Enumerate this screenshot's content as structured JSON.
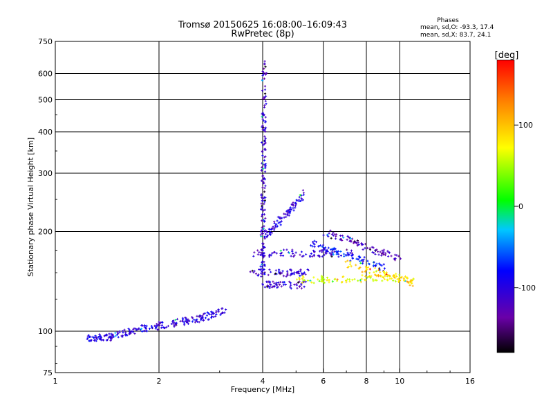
{
  "header": {
    "title_line1": "Tromsø 20150625 16:08:00–16:09:43",
    "title_line2": "RwPretec (8p)"
  },
  "phases_box": {
    "heading": "Phases",
    "line_o": "mean, sd,O: -93.3, 17.4",
    "line_x": "mean, sd,X: 83.7, 24.1"
  },
  "chart_data": {
    "type": "scatter",
    "xlabel": "Frequency [MHz]",
    "ylabel": "Stationary phase Virtual Height [km]",
    "x_scale": "log",
    "y_scale": "log",
    "xlim": [
      1,
      16
    ],
    "ylim": [
      75,
      750
    ],
    "x_ticks": [
      1,
      2,
      4,
      6,
      8,
      10,
      16
    ],
    "x_tick_labels": [
      "1",
      "2",
      "4",
      "6",
      "8",
      "10",
      "16"
    ],
    "x_grid_lines": [
      2,
      4,
      6,
      8,
      10
    ],
    "y_ticks": [
      75,
      100,
      200,
      300,
      400,
      500,
      600,
      750
    ],
    "y_tick_labels": [
      "75",
      "100",
      "200",
      "300",
      "400",
      "500",
      "600",
      "750"
    ],
    "y_grid_lines": [
      100,
      200,
      300,
      400,
      500,
      600
    ],
    "grid": true,
    "colorbar": {
      "label": "[deg]",
      "range": [
        -180,
        180
      ],
      "ticks": [
        100,
        0,
        -100
      ],
      "tick_labels": [
        "100",
        "0",
        "-100"
      ],
      "colors": [
        "#000000",
        "#6a00a8",
        "#0000ff",
        "#00c8ff",
        "#00ff00",
        "#ffff00",
        "#ff8000",
        "#ff0000"
      ]
    },
    "series": [
      {
        "traces": [
          {
            "f": [
              1.25,
              1.45
            ],
            "h": [
              95,
              96
            ],
            "phase": -100
          },
          {
            "f": [
              1.45,
              1.9
            ],
            "h": [
              97,
              103
            ],
            "phase": -100
          },
          {
            "f": [
              1.9,
              2.5
            ],
            "h": [
              103,
              108
            ],
            "phase": -105
          },
          {
            "f": [
              2.5,
              3.1
            ],
            "h": [
              108,
              115
            ],
            "phase": -100
          },
          {
            "f": [
              4.0,
              4.05
            ],
            "h": [
              150,
              650
            ],
            "phase": -110
          },
          {
            "f": [
              4.1,
              5.3
            ],
            "h": [
              195,
              260
            ],
            "phase": -105
          },
          {
            "f": [
              3.8,
              7.5
            ],
            "h": [
              172,
              172
            ],
            "phase": -110
          },
          {
            "f": [
              3.7,
              5.5
            ],
            "h": [
              150,
              150
            ],
            "phase": -105
          },
          {
            "f": [
              4.0,
              5.3
            ],
            "h": [
              138,
              138
            ],
            "phase": -110
          },
          {
            "f": [
              5.5,
              9.0
            ],
            "h": [
              185,
              155
            ],
            "phase": -80
          },
          {
            "f": [
              5.0,
              10.5
            ],
            "h": [
              143,
              145
            ],
            "phase": 70
          },
          {
            "f": [
              6.0,
              10.0
            ],
            "h": [
              200,
              165
            ],
            "phase": -120
          },
          {
            "f": [
              7.0,
              11.0
            ],
            "h": [
              160,
              140
            ],
            "phase": 90
          }
        ]
      }
    ]
  }
}
